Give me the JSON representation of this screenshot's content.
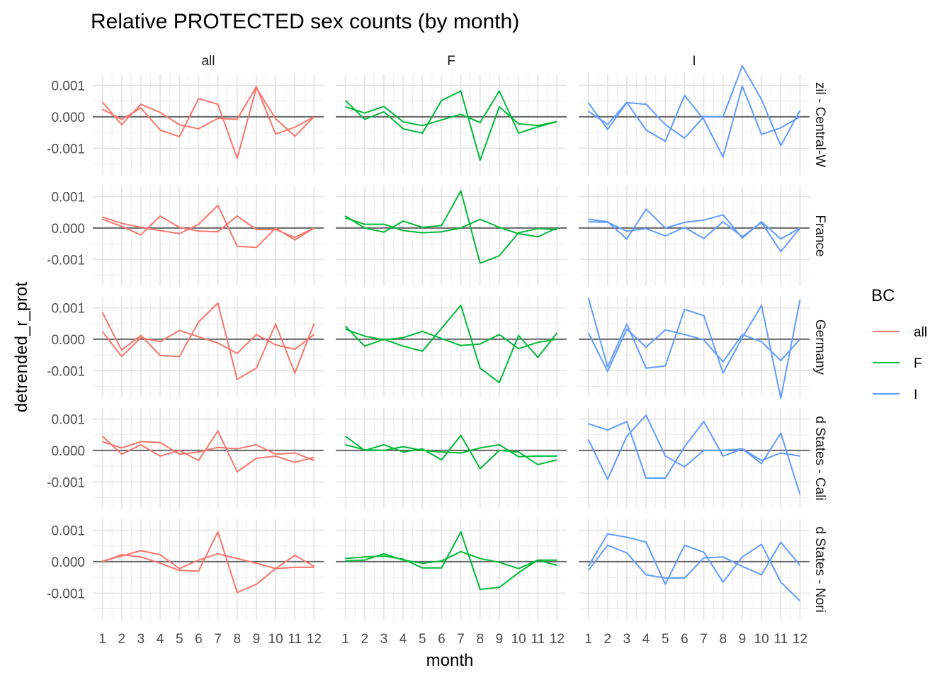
{
  "chart_data": {
    "type": "line",
    "title": "Relative PROTECTED sex counts (by month)",
    "xlabel": "month",
    "ylabel": "detrended_r_prot",
    "columns": [
      "all",
      "F",
      "I"
    ],
    "rows": [
      "zil - Central-W",
      "France",
      "Germany",
      "d States - Cali",
      "d States - Nori"
    ],
    "x": [
      1,
      2,
      3,
      4,
      5,
      6,
      7,
      8,
      9,
      10,
      11,
      12
    ],
    "xtick_labels": [
      "1",
      "2",
      "3",
      "4",
      "5",
      "6",
      "7",
      "8",
      "9",
      "10",
      "11",
      "12"
    ],
    "ylim": [
      -0.00185,
      0.00135
    ],
    "yticks": [
      0.001,
      0.0,
      -0.001
    ],
    "ytick_labels": [
      "0.001",
      "0.000",
      "-0.001"
    ],
    "zero_line": true,
    "grid": true,
    "legend": {
      "title": "BC",
      "position": "right",
      "entries": [
        {
          "label": "all",
          "color": "#F8766D"
        },
        {
          "label": "F",
          "color": "#00BA38"
        },
        {
          "label": "I",
          "color": "#619CFF"
        }
      ]
    },
    "panels": [
      {
        "row": 0,
        "col": 0,
        "lines": [
          [
            0.00047,
            -0.00025,
            0.0004,
            0.00014,
            -0.00025,
            -0.00038,
            -5e-05,
            -8e-05,
            0.00096,
            -0.00055,
            -0.00033,
            0.0
          ],
          [
            0.00024,
            -8e-05,
            0.00028,
            -0.00042,
            -0.00063,
            0.00058,
            0.0004,
            -0.00132,
            0.00092,
            -6e-05,
            -0.00062,
            0.0
          ]
        ]
      },
      {
        "row": 0,
        "col": 1,
        "lines": [
          [
            0.00052,
            -8e-05,
            0.00016,
            -0.00038,
            -0.00052,
            0.00052,
            0.00082,
            -0.00138,
            0.00032,
            -0.00022,
            -0.00028,
            -0.00015
          ],
          [
            0.00032,
            0.00012,
            0.00033,
            -0.00016,
            -0.00028,
            -0.0001,
            8e-05,
            -0.00018,
            0.00082,
            -0.00052,
            -0.00032,
            -0.00015
          ]
        ]
      },
      {
        "row": 0,
        "col": 2,
        "lines": [
          [
            0.00045,
            -0.0004,
            0.00045,
            0.0004,
            -0.00025,
            -0.00068,
            0.0,
            0.0,
            0.00162,
            0.00055,
            -0.00092,
            0.0002
          ],
          [
            0.00018,
            -0.00024,
            0.00046,
            -0.00042,
            -0.00078,
            0.00068,
            -8e-05,
            -0.00128,
            0.00098,
            -0.00056,
            -0.00035,
            0.0
          ]
        ]
      },
      {
        "row": 1,
        "col": 0,
        "lines": [
          [
            0.00035,
            0.00015,
            2e-05,
            -8e-05,
            -0.00018,
            0.00012,
            0.00072,
            -0.00058,
            -0.00062,
            0.0,
            -0.00038,
            0.0
          ],
          [
            0.00028,
            5e-05,
            -0.00022,
            0.00038,
            2e-05,
            -0.0001,
            -0.00012,
            0.00038,
            -5e-05,
            -5e-05,
            -0.0003,
            0.0
          ]
        ]
      },
      {
        "row": 1,
        "col": 1,
        "lines": [
          [
            0.00038,
            0.0,
            -0.00013,
            0.00022,
            2e-05,
            8e-05,
            0.00118,
            -0.00112,
            -0.00088,
            -0.00015,
            -2e-05,
            -5e-05
          ],
          [
            0.00032,
            0.00012,
            0.00012,
            -8e-05,
            -0.00015,
            -0.00012,
            0.0,
            0.00028,
            2e-05,
            -0.00018,
            -0.00028,
            0.0
          ]
        ]
      },
      {
        "row": 1,
        "col": 2,
        "lines": [
          [
            0.00028,
            0.0002,
            -0.00035,
            0.0006,
            0.0,
            0.00018,
            0.00025,
            0.00042,
            -0.00032,
            0.0002,
            -0.00035,
            0.0
          ],
          [
            0.0002,
            0.00018,
            -0.0001,
            -2e-05,
            -0.00025,
            2e-05,
            -0.00033,
            0.0002,
            -0.00028,
            0.00018,
            -0.00075,
            0.0
          ]
        ]
      },
      {
        "row": 2,
        "col": 0,
        "lines": [
          [
            0.00085,
            -0.00035,
            0.00012,
            -0.00052,
            -0.00055,
            0.00055,
            0.00115,
            -0.00128,
            -0.00092,
            0.00048,
            -0.00108,
            0.0005
          ],
          [
            0.00024,
            -0.00055,
            5e-05,
            -8e-05,
            0.00028,
            8e-05,
            -0.00012,
            -0.00045,
            0.00015,
            -0.00018,
            -0.00032,
            0.00015
          ]
        ]
      },
      {
        "row": 2,
        "col": 1,
        "lines": [
          [
            0.00042,
            -0.00022,
            0.0,
            -0.00022,
            -0.00038,
            0.00035,
            0.00108,
            -0.00092,
            -0.00138,
            0.00012,
            -0.00058,
            0.0002
          ],
          [
            0.00032,
            0.0001,
            -2e-05,
            5e-05,
            0.00025,
            2e-05,
            -0.0002,
            -0.00015,
            0.00015,
            -0.0003,
            -0.0001,
            0.0
          ]
        ]
      },
      {
        "row": 2,
        "col": 2,
        "lines": [
          [
            0.00132,
            -0.00088,
            0.00048,
            -0.00092,
            -0.00085,
            0.00095,
            0.00075,
            -0.00108,
            5e-05,
            0.00108,
            -0.00188,
            0.00125
          ],
          [
            0.0002,
            -0.00102,
            0.00032,
            -0.00025,
            0.0003,
            0.00015,
            -2e-05,
            -0.00072,
            0.00015,
            -8e-05,
            -0.00068,
            0.0
          ]
        ]
      },
      {
        "row": 3,
        "col": 0,
        "lines": [
          [
            0.00045,
            -0.00012,
            0.00018,
            -0.00018,
            0.0,
            -0.00032,
            0.00062,
            -0.00068,
            -0.00025,
            -0.00018,
            -0.00038,
            -0.00022
          ],
          [
            0.00028,
            8e-05,
            0.00028,
            0.00025,
            -0.00012,
            -5e-05,
            0.0001,
            5e-05,
            0.00018,
            -0.00012,
            -8e-05,
            -0.00032
          ]
        ]
      },
      {
        "row": 3,
        "col": 1,
        "lines": [
          [
            0.00045,
            0.0,
            0.00018,
            -5e-05,
            5e-05,
            -0.0003,
            0.00048,
            -0.00058,
            0.0,
            -5e-05,
            -0.00045,
            -0.0003
          ],
          [
            0.00018,
            2e-05,
            0.0,
            0.00012,
            0.0,
            -5e-05,
            -8e-05,
            8e-05,
            0.00018,
            -0.0002,
            -0.00018,
            -0.00018
          ]
        ]
      },
      {
        "row": 3,
        "col": 2,
        "lines": [
          [
            0.00085,
            0.00065,
            0.00092,
            -0.00088,
            -0.00088,
            0.00012,
            0.00092,
            -0.00018,
            5e-05,
            -0.00042,
            0.00055,
            -0.0014
          ],
          [
            0.00035,
            -0.00092,
            0.00045,
            0.00112,
            -0.00018,
            -0.00052,
            0.0,
            0.0,
            5e-05,
            -0.00032,
            -8e-05,
            -0.00018
          ]
        ]
      },
      {
        "row": 4,
        "col": 0,
        "lines": [
          [
            0.0,
            0.00022,
            0.00015,
            -5e-05,
            -0.00028,
            -0.0003,
            0.00095,
            -0.00098,
            -0.00072,
            -0.00022,
            0.0002,
            -0.00015
          ],
          [
            2e-05,
            0.00018,
            0.00035,
            0.00022,
            -0.00022,
            5e-05,
            0.00025,
            0.0001,
            -5e-05,
            -0.00022,
            -0.00018,
            -0.00018
          ]
        ]
      },
      {
        "row": 4,
        "col": 1,
        "lines": [
          [
            0.0001,
            0.00015,
            0.00018,
            8e-05,
            -0.0002,
            -0.0002,
            0.00095,
            -0.00088,
            -0.00082,
            -0.00035,
            5e-05,
            5e-05
          ],
          [
            2e-05,
            5e-05,
            0.00025,
            5e-05,
            -5e-05,
            2e-05,
            0.00032,
            0.0001,
            -2e-05,
            -0.00022,
            5e-05,
            -0.00012
          ]
        ]
      },
      {
        "row": 4,
        "col": 2,
        "lines": [
          [
            -0.00015,
            0.00088,
            0.00078,
            0.00062,
            -0.00072,
            0.00052,
            0.0003,
            -0.00065,
            0.00015,
            0.00055,
            -0.00065,
            -0.00125
          ],
          [
            -0.00028,
            0.00052,
            0.00028,
            -0.00042,
            -0.00052,
            -0.00052,
            0.00012,
            0.00015,
            -0.00015,
            -0.00042,
            0.00062,
            -0.00012
          ]
        ]
      }
    ]
  }
}
